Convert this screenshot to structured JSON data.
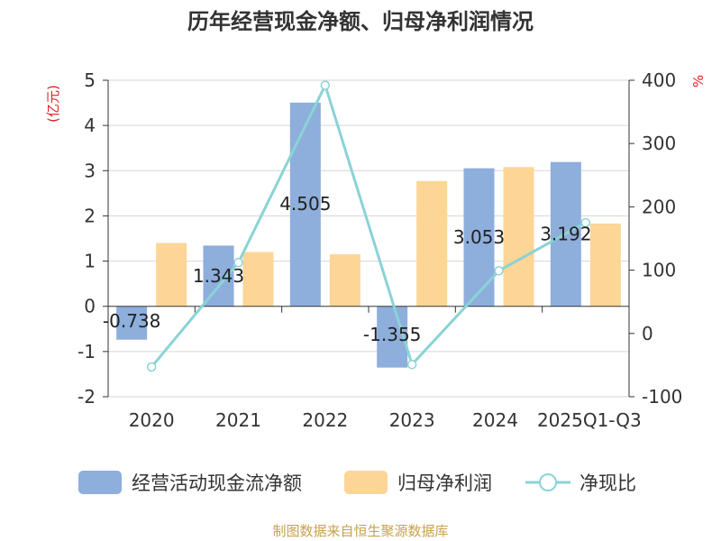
{
  "chart_data": {
    "type": "bar",
    "title": "历年经营现金净额、归母净利润情况",
    "categories": [
      "2020",
      "2021",
      "2022",
      "2023",
      "2024",
      "2025Q1-Q3"
    ],
    "left_axis": {
      "unit": "(亿元)",
      "ylim": [
        -2,
        5
      ],
      "ticks": [
        "5",
        "4",
        "3",
        "2",
        "1",
        "0",
        "-1",
        "-2"
      ],
      "tick_values": [
        5,
        4,
        3,
        2,
        1,
        0,
        -1,
        -2
      ]
    },
    "right_axis": {
      "unit": "%",
      "ylim": [
        -100,
        400
      ],
      "ticks": [
        "400",
        "300",
        "200",
        "100",
        "0",
        "-100"
      ],
      "tick_values": [
        400,
        300,
        200,
        100,
        0,
        -100
      ]
    },
    "series": [
      {
        "name": "经营活动现金流净额",
        "type": "bar",
        "axis": "left",
        "color": "#8eaedc",
        "values": [
          -0.738,
          1.343,
          4.505,
          -1.355,
          3.053,
          3.192
        ],
        "labels": [
          "-0.738",
          "1.343",
          "4.505",
          "-1.355",
          "3.053",
          "3.192"
        ]
      },
      {
        "name": "归母净利润",
        "type": "bar",
        "axis": "left",
        "color": "#fdd596",
        "values": [
          1.4,
          1.2,
          1.15,
          2.77,
          3.08,
          1.83
        ]
      },
      {
        "name": "净现比",
        "type": "line",
        "axis": "right",
        "color": "#8ad3d6",
        "values": [
          -53,
          112,
          392,
          -49,
          99,
          175
        ]
      }
    ],
    "grid": true,
    "legend_position": "bottom"
  },
  "footer": {
    "source": "制图数据来自恒生聚源数据库"
  }
}
